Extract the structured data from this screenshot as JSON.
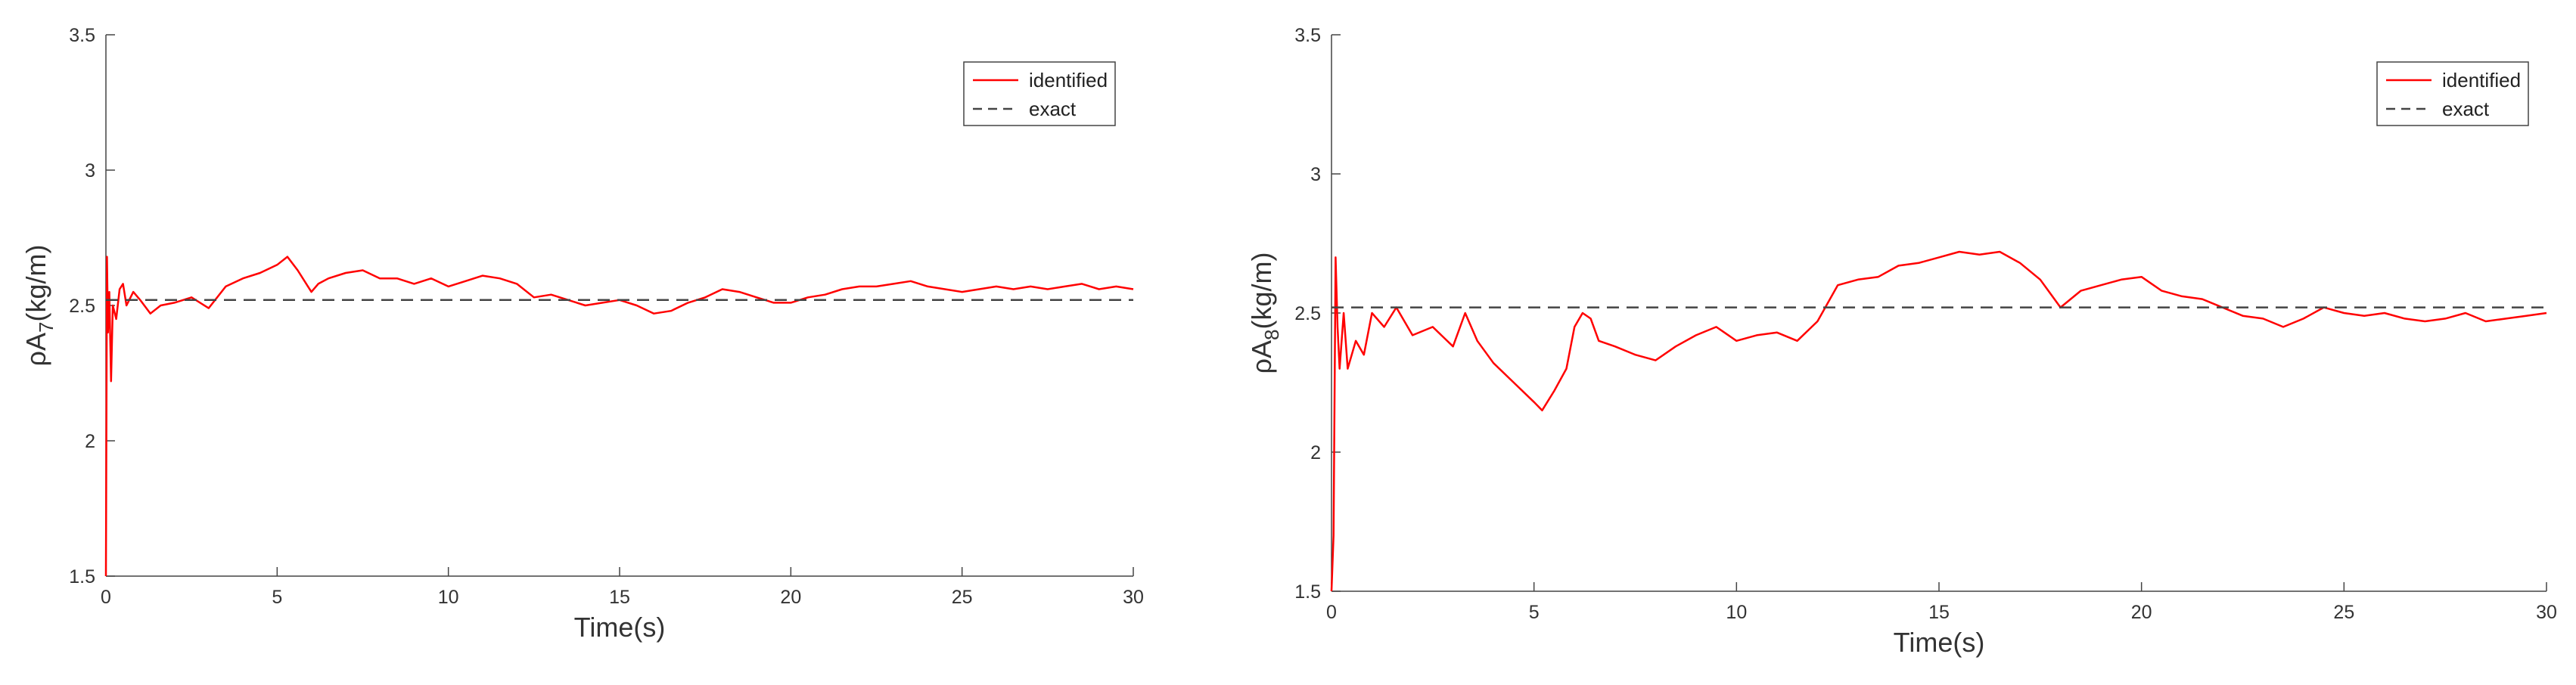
{
  "chart_data": [
    {
      "type": "line",
      "xlabel": "Time(s)",
      "ylabel": {
        "prefix": "ρA",
        "subscript": "7",
        "suffix": "(kg/m)"
      },
      "xlim": [
        0,
        30
      ],
      "ylim": [
        1.5,
        3.5
      ],
      "xticks": [
        "0",
        "5",
        "10",
        "15",
        "20",
        "25",
        "30"
      ],
      "yticks": [
        "1.5",
        "2",
        "2.5",
        "3",
        "3.5"
      ],
      "grid": false,
      "legend_position": "top-right",
      "series": [
        {
          "name": "identified",
          "color": "#ff0000",
          "style": "solid",
          "x": [
            0,
            0.03,
            0.06,
            0.1,
            0.15,
            0.2,
            0.3,
            0.4,
            0.5,
            0.6,
            0.8,
            1.0,
            1.3,
            1.6,
            2.0,
            2.5,
            3.0,
            3.5,
            4.0,
            4.5,
            5.0,
            5.3,
            5.6,
            6.0,
            6.2,
            6.5,
            7.0,
            7.5,
            8.0,
            8.5,
            9.0,
            9.5,
            10.0,
            10.5,
            11.0,
            11.5,
            12.0,
            12.5,
            13.0,
            13.5,
            14.0,
            14.5,
            15.0,
            15.5,
            16.0,
            16.5,
            17.0,
            17.5,
            18.0,
            18.5,
            19.0,
            19.5,
            20.0,
            20.5,
            21.0,
            21.5,
            22.0,
            22.5,
            23.0,
            23.5,
            24.0,
            24.5,
            25.0,
            25.5,
            26.0,
            26.5,
            27.0,
            27.5,
            28.0,
            28.5,
            29.0,
            29.5,
            30.0
          ],
          "y": [
            1.5,
            2.68,
            2.4,
            2.55,
            2.22,
            2.5,
            2.45,
            2.56,
            2.58,
            2.5,
            2.55,
            2.52,
            2.47,
            2.5,
            2.51,
            2.53,
            2.49,
            2.57,
            2.6,
            2.62,
            2.65,
            2.68,
            2.63,
            2.55,
            2.58,
            2.6,
            2.62,
            2.63,
            2.6,
            2.6,
            2.58,
            2.6,
            2.57,
            2.59,
            2.61,
            2.6,
            2.58,
            2.53,
            2.54,
            2.52,
            2.5,
            2.51,
            2.52,
            2.5,
            2.47,
            2.48,
            2.51,
            2.53,
            2.56,
            2.55,
            2.53,
            2.51,
            2.51,
            2.53,
            2.54,
            2.56,
            2.57,
            2.57,
            2.58,
            2.59,
            2.57,
            2.56,
            2.55,
            2.56,
            2.57,
            2.56,
            2.57,
            2.56,
            2.57,
            2.58,
            2.56,
            2.57,
            2.56
          ]
        },
        {
          "name": "exact",
          "color": "#444444",
          "style": "dashed",
          "x": [
            0,
            30
          ],
          "y": [
            2.52,
            2.52
          ]
        }
      ]
    },
    {
      "type": "line",
      "xlabel": "Time(s)",
      "ylabel": {
        "prefix": "ρA",
        "subscript": "8",
        "suffix": "(kg/m)"
      },
      "xlim": [
        0,
        30
      ],
      "ylim": [
        1.5,
        3.5
      ],
      "xticks": [
        "0",
        "5",
        "10",
        "15",
        "20",
        "25",
        "30"
      ],
      "yticks": [
        "1.5",
        "2",
        "2.5",
        "3",
        "3.5"
      ],
      "grid": false,
      "legend_position": "top-right",
      "series": [
        {
          "name": "identified",
          "color": "#ff0000",
          "style": "solid",
          "x": [
            0,
            0.05,
            0.1,
            0.15,
            0.2,
            0.3,
            0.4,
            0.6,
            0.8,
            1.0,
            1.3,
            1.6,
            2.0,
            2.5,
            3.0,
            3.3,
            3.6,
            4.0,
            4.5,
            5.0,
            5.2,
            5.5,
            5.8,
            6.0,
            6.2,
            6.4,
            6.6,
            7.0,
            7.5,
            8.0,
            8.5,
            9.0,
            9.5,
            10.0,
            10.5,
            11.0,
            11.5,
            12.0,
            12.5,
            13.0,
            13.5,
            14.0,
            14.5,
            15.0,
            15.5,
            16.0,
            16.5,
            17.0,
            17.5,
            18.0,
            18.5,
            19.0,
            19.5,
            20.0,
            20.5,
            21.0,
            21.5,
            22.0,
            22.5,
            23.0,
            23.5,
            24.0,
            24.5,
            25.0,
            25.5,
            26.0,
            26.5,
            27.0,
            27.5,
            28.0,
            28.5,
            29.0,
            29.5,
            30.0
          ],
          "y": [
            1.5,
            1.7,
            2.7,
            2.45,
            2.3,
            2.5,
            2.3,
            2.4,
            2.35,
            2.5,
            2.45,
            2.52,
            2.42,
            2.45,
            2.38,
            2.5,
            2.4,
            2.32,
            2.25,
            2.18,
            2.15,
            2.22,
            2.3,
            2.45,
            2.5,
            2.48,
            2.4,
            2.38,
            2.35,
            2.33,
            2.38,
            2.42,
            2.45,
            2.4,
            2.42,
            2.43,
            2.4,
            2.47,
            2.6,
            2.62,
            2.63,
            2.67,
            2.68,
            2.7,
            2.72,
            2.71,
            2.72,
            2.68,
            2.62,
            2.52,
            2.58,
            2.6,
            2.62,
            2.63,
            2.58,
            2.56,
            2.55,
            2.52,
            2.49,
            2.48,
            2.45,
            2.48,
            2.52,
            2.5,
            2.49,
            2.5,
            2.48,
            2.47,
            2.48,
            2.5,
            2.47,
            2.48,
            2.49,
            2.5
          ]
        },
        {
          "name": "exact",
          "color": "#444444",
          "style": "dashed",
          "x": [
            0,
            30
          ],
          "y": [
            2.52,
            2.52
          ]
        }
      ]
    }
  ]
}
